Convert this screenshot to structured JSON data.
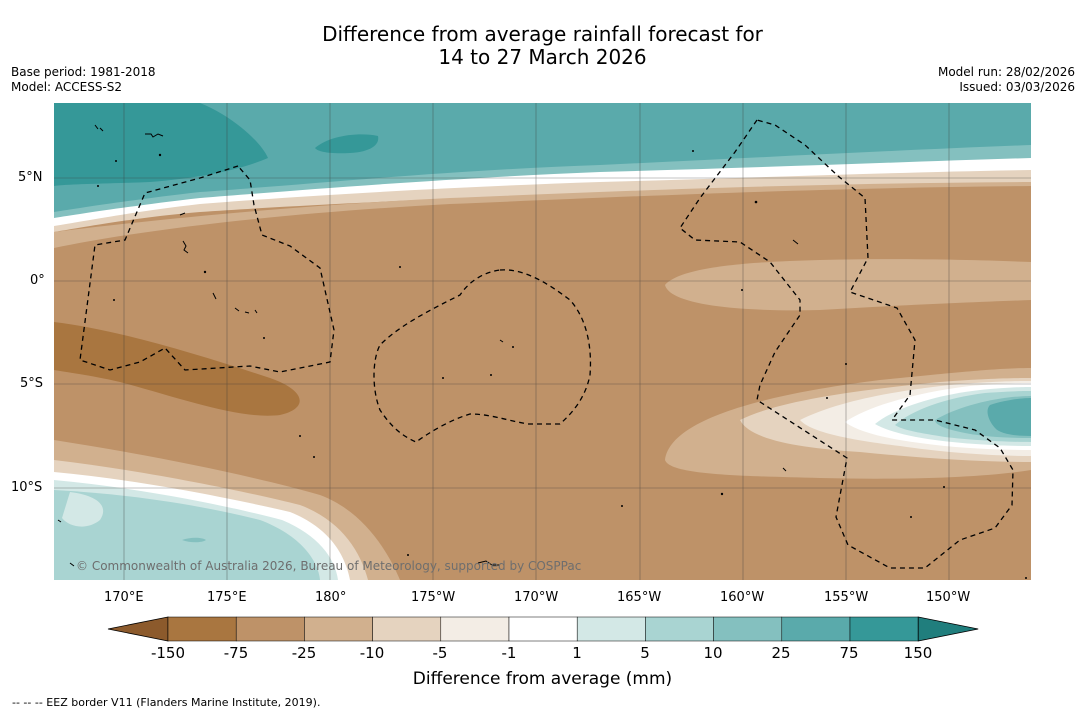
{
  "title": {
    "line1": "Difference from average rainfall forecast for",
    "line2": "14 to 27 March 2026"
  },
  "meta_left": {
    "base_period": "Base period: 1981-2018",
    "model": "Model: ACCESS-S2"
  },
  "meta_right": {
    "model_run": "Model run: 28/02/2026",
    "issued": "Issued: 03/03/2026"
  },
  "map": {
    "copyright": "© Commonwealth of Australia 2026, Bureau of Meteorology, supported by COSPPac",
    "lat_ticks": [
      "5°N",
      "0°",
      "5°S",
      "10°S"
    ],
    "lon_ticks": [
      "170°E",
      "175°E",
      "180°",
      "175°W",
      "170°W",
      "165°W",
      "160°W",
      "155°W",
      "150°W"
    ]
  },
  "colorbar": {
    "title": "Difference from average (mm)",
    "labels": [
      "-150",
      "-75",
      "-25",
      "-10",
      "-5",
      "-1",
      "1",
      "5",
      "10",
      "25",
      "75",
      "150"
    ],
    "colors": [
      "#8c5a2c",
      "#a97640",
      "#be9268",
      "#d1b08e",
      "#e5d3bf",
      "#f3ede5",
      "#ffffff",
      "#d3e8e6",
      "#a9d4d2",
      "#84c0bf",
      "#5aaaab",
      "#359898",
      "#207e7d"
    ]
  },
  "footnote": "--  --  -- EEZ border V11 (Flanders Marine Institute, 2019)."
}
